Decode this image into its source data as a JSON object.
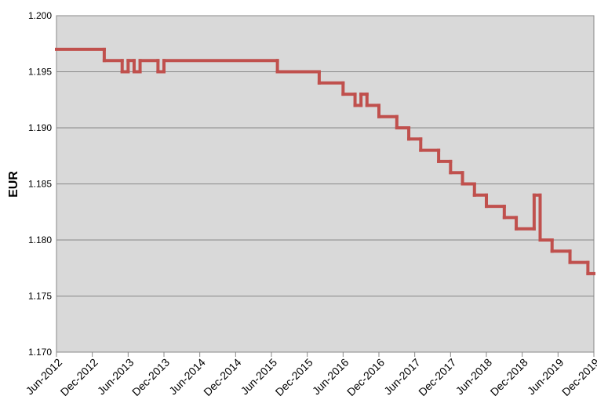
{
  "chart_data": {
    "type": "step-line",
    "y_label": "EUR",
    "x": [
      "2012-06",
      "2013-02",
      "2013-05",
      "2013-06",
      "2013-07",
      "2013-08",
      "2013-11",
      "2013-12",
      "2015-07",
      "2016-02",
      "2016-06",
      "2016-08",
      "2016-09",
      "2016-10",
      "2016-12",
      "2017-03",
      "2017-05",
      "2017-07",
      "2017-10",
      "2017-12",
      "2018-02",
      "2018-04",
      "2018-06",
      "2018-09",
      "2018-11",
      "2019-02",
      "2019-03",
      "2019-05",
      "2019-08",
      "2019-11"
    ],
    "series": [
      {
        "name": "EUR",
        "color": "#c0504d",
        "values": [
          1.197,
          1.196,
          1.195,
          1.196,
          1.195,
          1.196,
          1.195,
          1.196,
          1.195,
          1.194,
          1.193,
          1.192,
          1.193,
          1.192,
          1.191,
          1.19,
          1.189,
          1.188,
          1.187,
          1.186,
          1.185,
          1.184,
          1.183,
          1.182,
          1.181,
          1.184,
          1.18,
          1.179,
          1.178,
          1.177
        ]
      }
    ],
    "xlim": [
      "2012-06",
      "2019-12"
    ],
    "xticks": [
      {
        "value": "2012-06",
        "label": "Jun-2012"
      },
      {
        "value": "2012-12",
        "label": "Dec-2012"
      },
      {
        "value": "2013-06",
        "label": "Jun-2013"
      },
      {
        "value": "2013-12",
        "label": "Dec-2013"
      },
      {
        "value": "2014-06",
        "label": "Jun-2014"
      },
      {
        "value": "2014-12",
        "label": "Dec-2014"
      },
      {
        "value": "2015-06",
        "label": "Jun-2015"
      },
      {
        "value": "2015-12",
        "label": "Dec-2015"
      },
      {
        "value": "2016-06",
        "label": "Jun-2016"
      },
      {
        "value": "2016-12",
        "label": "Dec-2016"
      },
      {
        "value": "2017-06",
        "label": "Jun-2017"
      },
      {
        "value": "2017-12",
        "label": "Dec-2017"
      },
      {
        "value": "2018-06",
        "label": "Jun-2018"
      },
      {
        "value": "2018-12",
        "label": "Dec-2018"
      },
      {
        "value": "2019-06",
        "label": "Jun-2019"
      },
      {
        "value": "2019-12",
        "label": "Dec-2019"
      }
    ],
    "ylim": [
      1.17,
      1.2
    ],
    "yticks": [
      {
        "value": 1.17,
        "label": "1.170"
      },
      1.175,
      {
        "value": 1.18,
        "label": "1.180"
      },
      1.185,
      {
        "value": 1.19,
        "label": "1.190"
      },
      1.195,
      {
        "value": 1.2,
        "label": "1.200"
      }
    ],
    "grid": true,
    "background": "#d9d9d9"
  }
}
